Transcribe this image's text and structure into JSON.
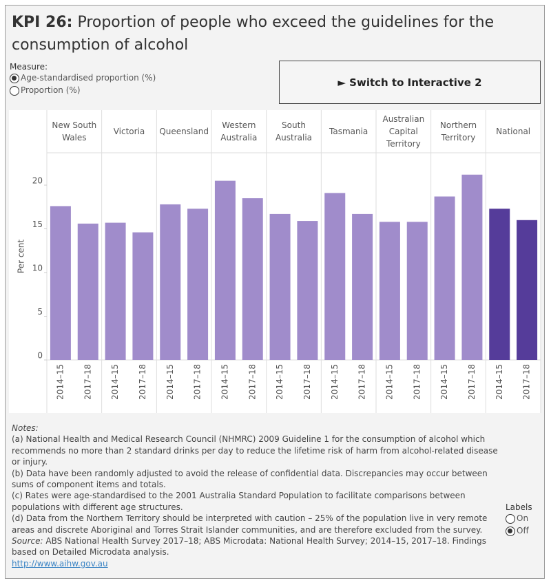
{
  "header": {
    "title_bold": "KPI 26:",
    "title": "Proportion of people who exceed the guidelines for the consumption of alcohol"
  },
  "measure": {
    "label": "Measure:",
    "options": [
      "Age-standardised proportion (%)",
      "Proportion (%)"
    ],
    "selected": 0
  },
  "button": {
    "label": "► Switch to Interactive 2"
  },
  "chart_data": {
    "type": "bar",
    "y_label": "Per cent",
    "categories": [
      "New South Wales",
      "Victoria",
      "Queensland",
      "Western Australia",
      "South Australia",
      "Tasmania",
      "Australian Capital Territory",
      "Northern Territory",
      "National"
    ],
    "colors": [
      "#a08ccb",
      "#a08ccb",
      "#a08ccb",
      "#a08ccb",
      "#a08ccb",
      "#a08ccb",
      "#a08ccb",
      "#a08ccb",
      "#553c9a"
    ],
    "series": [
      {
        "name": "2014–15",
        "values": [
          17.6,
          15.7,
          17.8,
          20.5,
          16.7,
          19.1,
          15.8,
          18.7,
          17.3
        ]
      },
      {
        "name": "2017–18",
        "values": [
          15.6,
          14.6,
          17.3,
          18.5,
          15.9,
          16.7,
          15.8,
          21.2,
          16.0
        ]
      }
    ],
    "ylim": [
      0,
      23.7
    ],
    "yticks": [
      0,
      5,
      10,
      15,
      20
    ]
  },
  "notes": {
    "heading": "Notes:",
    "items": [
      "(a) National Health and Medical Research Council (NHMRC) 2009 Guideline 1 for the consumption of alcohol which recommends no more than 2 standard drinks per day to reduce the lifetime risk of harm from alcohol-related disease or injury.",
      "(b) Data have been randomly adjusted to avoid the release of confidential data. Discrepancies may occur between sums of component items and totals.",
      "(c) Rates were age-standardised to the 2001 Australia Standard Population to facilitate comparisons between populations with different age structures.",
      "(d) Data from the Northern Territory should be interpreted with caution – 25% of the population live in very remote areas and discrete Aboriginal and Torres Strait Islander communities, and are therefore excluded from the survey."
    ],
    "source_label": "Source:",
    "source": "ABS National Health Survey 2017–18; ABS Microdata: National Health Survey; 2014–15, 2017–18. Findings based on Detailed Microdata analysis.",
    "link": "http://www.aihw.gov.au"
  },
  "labels_control": {
    "label": "Labels",
    "options": [
      "On",
      "Off"
    ],
    "selected": 1
  }
}
